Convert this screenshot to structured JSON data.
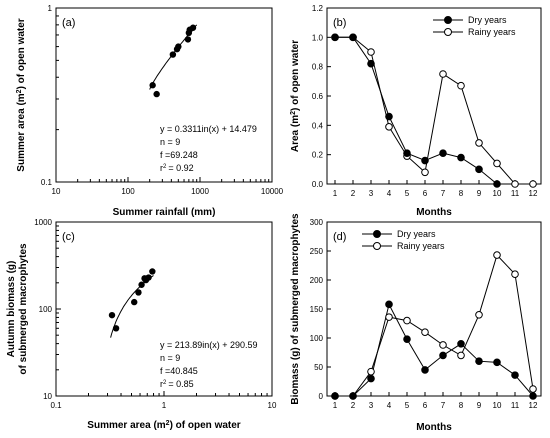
{
  "chart_data": [
    {
      "panel_label": "(a)",
      "type": "scatter",
      "xscale": "log",
      "yscale": "log",
      "xlim": [
        10,
        10000
      ],
      "ylim": [
        0.1,
        1
      ],
      "xticks": [
        "10",
        "100",
        "1000",
        "10000"
      ],
      "yticks": [
        "0.1",
        "1"
      ],
      "xlabel_html": [
        "Summer rainfall (mm)"
      ],
      "ylabel_parts": [
        "Summer area (m",
        "2",
        ") of open water"
      ],
      "points": [
        {
          "x": 220,
          "y": 0.36
        },
        {
          "x": 250,
          "y": 0.32
        },
        {
          "x": 420,
          "y": 0.54
        },
        {
          "x": 480,
          "y": 0.58
        },
        {
          "x": 500,
          "y": 0.6
        },
        {
          "x": 680,
          "y": 0.66
        },
        {
          "x": 700,
          "y": 0.72
        },
        {
          "x": 720,
          "y": 0.75
        },
        {
          "x": 800,
          "y": 0.77
        }
      ],
      "fit": {
        "a": 0.3311,
        "b": 14.479,
        "xrange": [
          200,
          900
        ],
        "scale": 0.04
      },
      "annotations": [
        "y = 0.3311in(x) + 14.479",
        "n = 9",
        "f  =69.248",
        "r"
      ],
      "r2_value": "= 0.92"
    },
    {
      "panel_label": "(b)",
      "type": "line",
      "xlabel": "Months",
      "ylabel_parts": [
        "Area (m",
        "2",
        ") of open water"
      ],
      "categories": [
        "1",
        "2",
        "3",
        "4",
        "5",
        "6",
        "7",
        "8",
        "9",
        "10",
        "11",
        "12"
      ],
      "ylim": [
        0,
        1.2
      ],
      "yticks": [
        "0.0",
        "0.2",
        "0.4",
        "0.6",
        "0.8",
        "1.0",
        "1.2"
      ],
      "series": [
        {
          "name": "Dry years",
          "marker": "filled",
          "values": [
            1.0,
            1.0,
            0.82,
            0.46,
            0.21,
            0.16,
            0.21,
            0.18,
            0.1,
            0.0,
            null,
            null
          ]
        },
        {
          "name": "Rainy years",
          "marker": "open",
          "values": [
            1.0,
            1.0,
            0.9,
            0.39,
            0.19,
            0.08,
            0.75,
            0.67,
            0.28,
            0.14,
            0.0,
            0.0
          ]
        }
      ],
      "legend": "top-right"
    },
    {
      "panel_label": "(c)",
      "type": "scatter",
      "xscale": "log",
      "yscale": "log",
      "xlim": [
        0.1,
        10
      ],
      "ylim": [
        10,
        1000
      ],
      "xticks": [
        "0.1",
        "1",
        "10"
      ],
      "yticks": [
        "10",
        "100",
        "1000"
      ],
      "xlabel_parts": [
        "Summer area (m",
        "2",
        ") of open water"
      ],
      "ylabel_lines": [
        "Autumn biomass (g)",
        "of submerged macrophytes"
      ],
      "points": [
        {
          "x": 0.33,
          "y": 85
        },
        {
          "x": 0.36,
          "y": 60
        },
        {
          "x": 0.53,
          "y": 120
        },
        {
          "x": 0.58,
          "y": 155
        },
        {
          "x": 0.62,
          "y": 190
        },
        {
          "x": 0.66,
          "y": 225
        },
        {
          "x": 0.68,
          "y": 215
        },
        {
          "x": 0.72,
          "y": 230
        },
        {
          "x": 0.78,
          "y": 270
        }
      ],
      "fit": {
        "a": 213.89,
        "b": 290.59,
        "xrange": [
          0.32,
          0.8
        ]
      },
      "annotations": [
        "y = 213.89in(x) + 290.59",
        "n = 9",
        "f  =40.845",
        "r"
      ],
      "r2_value": "= 0.85"
    },
    {
      "panel_label": "(d)",
      "type": "line",
      "xlabel": "Months",
      "ylabel": "Biomass (g) of submerged macrophytes",
      "categories": [
        "1",
        "2",
        "3",
        "4",
        "5",
        "6",
        "7",
        "8",
        "9",
        "10",
        "11",
        "12"
      ],
      "ylim": [
        0,
        300
      ],
      "yticks": [
        "0",
        "50",
        "100",
        "150",
        "200",
        "250",
        "300"
      ],
      "series": [
        {
          "name": "Dry years",
          "marker": "filled",
          "values": [
            0,
            0,
            30,
            158,
            98,
            45,
            70,
            90,
            60,
            58,
            36,
            0
          ]
        },
        {
          "name": "Rainy years",
          "marker": "open",
          "values": [
            0,
            0,
            42,
            136,
            130,
            110,
            88,
            70,
            140,
            243,
            210,
            12
          ]
        }
      ],
      "legend": "top-left"
    }
  ]
}
